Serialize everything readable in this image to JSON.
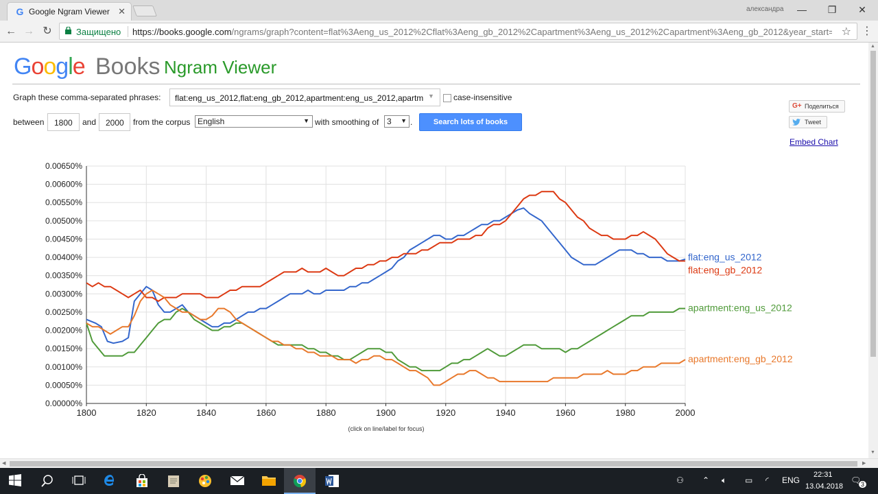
{
  "browser": {
    "tab_title": "Google Ngram Viewer",
    "tab_favicon": "G",
    "profile_name": "александра",
    "secure_label": "Защищено",
    "url_host": "https://books.google.com",
    "url_path": "/ngrams/graph?content=flat%3Aeng_us_2012%2Cflat%3Aeng_gb_2012%2Capartment%3Aeng_us_2012%2Capartment%3Aeng_gb_2012&year_start=..."
  },
  "page": {
    "logo_google": [
      "G",
      "o",
      "o",
      "g",
      "l",
      "e"
    ],
    "logo_books": "Books",
    "product_name": "Ngram Viewer",
    "phrases_label": "Graph these comma-separated phrases:",
    "phrases_value": "flat:eng_us_2012,flat:eng_gb_2012,apartment:eng_us_2012,apartm",
    "case_insensitive_label": "case-insensitive",
    "between_label": "between",
    "year_start": "1800",
    "and_label": "and",
    "year_end": "2000",
    "corpus_label": "from the corpus",
    "corpus_value": "English",
    "smoothing_label": "with smoothing of",
    "smoothing_value": "3",
    "dot": ".",
    "search_button": "Search lots of books",
    "share_label": "Поделиться",
    "share_icon": "G+",
    "tweet_label": "Tweet",
    "embed_link": "Embed Chart",
    "focus_hint": "(click on line/label for focus)"
  },
  "chart_data": {
    "type": "line",
    "xlim": [
      1800,
      2000
    ],
    "ylim": [
      0,
      0.0065
    ],
    "x_ticks": [
      1800,
      1820,
      1840,
      1860,
      1880,
      1900,
      1920,
      1940,
      1960,
      1980,
      2000
    ],
    "y_ticks": [
      "0.00000%",
      "0.00050%",
      "0.00100%",
      "0.00150%",
      "0.00200%",
      "0.00250%",
      "0.00300%",
      "0.00350%",
      "0.00400%",
      "0.00450%",
      "0.00500%",
      "0.00550%",
      "0.00600%",
      "0.00650%"
    ],
    "grid": true,
    "legend": "labels at line ends (right)",
    "series": [
      {
        "name": "flat:eng_us_2012",
        "color": "#3366cc",
        "x": [
          1800,
          1803,
          1805,
          1807,
          1809,
          1812,
          1814,
          1816,
          1818,
          1820,
          1822,
          1824,
          1826,
          1828,
          1830,
          1832,
          1834,
          1836,
          1838,
          1840,
          1842,
          1844,
          1846,
          1848,
          1850,
          1852,
          1854,
          1856,
          1858,
          1860,
          1862,
          1864,
          1866,
          1868,
          1870,
          1872,
          1874,
          1876,
          1878,
          1880,
          1882,
          1884,
          1886,
          1888,
          1890,
          1892,
          1894,
          1896,
          1898,
          1900,
          1902,
          1904,
          1906,
          1908,
          1910,
          1912,
          1914,
          1916,
          1918,
          1920,
          1922,
          1924,
          1926,
          1928,
          1930,
          1932,
          1934,
          1936,
          1938,
          1940,
          1942,
          1944,
          1946,
          1948,
          1950,
          1952,
          1954,
          1956,
          1958,
          1960,
          1962,
          1964,
          1966,
          1968,
          1970,
          1972,
          1974,
          1976,
          1978,
          1980,
          1982,
          1984,
          1986,
          1988,
          1990,
          1992,
          1994,
          1996,
          1998,
          2000
        ],
        "y": [
          0.0023,
          0.0022,
          0.0021,
          0.0017,
          0.00165,
          0.0017,
          0.0018,
          0.0028,
          0.003,
          0.0032,
          0.0031,
          0.0027,
          0.0025,
          0.0025,
          0.0026,
          0.0027,
          0.0025,
          0.0024,
          0.0023,
          0.0022,
          0.0021,
          0.0021,
          0.0022,
          0.0022,
          0.0023,
          0.0024,
          0.0025,
          0.0025,
          0.0026,
          0.0026,
          0.0027,
          0.0028,
          0.0029,
          0.003,
          0.003,
          0.003,
          0.0031,
          0.003,
          0.003,
          0.0031,
          0.0031,
          0.0031,
          0.0031,
          0.0032,
          0.0032,
          0.0033,
          0.0033,
          0.0034,
          0.0035,
          0.0036,
          0.0037,
          0.0039,
          0.004,
          0.0042,
          0.0043,
          0.0044,
          0.0045,
          0.0046,
          0.0046,
          0.0045,
          0.0045,
          0.0046,
          0.0046,
          0.0047,
          0.0048,
          0.0049,
          0.0049,
          0.005,
          0.005,
          0.0051,
          0.0052,
          0.0053,
          0.00535,
          0.0052,
          0.0051,
          0.005,
          0.0048,
          0.0046,
          0.0044,
          0.0042,
          0.004,
          0.0039,
          0.0038,
          0.0038,
          0.0038,
          0.0039,
          0.004,
          0.0041,
          0.0042,
          0.0042,
          0.0042,
          0.0041,
          0.0041,
          0.004,
          0.004,
          0.004,
          0.0039,
          0.0039,
          0.0039,
          0.00395
        ]
      },
      {
        "name": "flat:eng_gb_2012",
        "color": "#dc3912",
        "x": [
          1800,
          1802,
          1804,
          1806,
          1808,
          1810,
          1812,
          1814,
          1816,
          1818,
          1820,
          1822,
          1824,
          1826,
          1828,
          1830,
          1832,
          1834,
          1836,
          1838,
          1840,
          1842,
          1844,
          1846,
          1848,
          1850,
          1852,
          1854,
          1856,
          1858,
          1860,
          1862,
          1864,
          1866,
          1868,
          1870,
          1872,
          1874,
          1876,
          1878,
          1880,
          1882,
          1884,
          1886,
          1888,
          1890,
          1892,
          1894,
          1896,
          1898,
          1900,
          1902,
          1904,
          1906,
          1908,
          1910,
          1912,
          1914,
          1916,
          1918,
          1920,
          1922,
          1924,
          1926,
          1928,
          1930,
          1932,
          1934,
          1936,
          1938,
          1940,
          1942,
          1944,
          1946,
          1948,
          1950,
          1952,
          1954,
          1956,
          1958,
          1960,
          1962,
          1964,
          1966,
          1968,
          1970,
          1972,
          1974,
          1976,
          1978,
          1980,
          1982,
          1984,
          1986,
          1988,
          1990,
          1992,
          1994,
          1996,
          1998,
          2000
        ],
        "y": [
          0.0033,
          0.0032,
          0.0033,
          0.0032,
          0.0032,
          0.0031,
          0.003,
          0.0029,
          0.003,
          0.0031,
          0.0029,
          0.0029,
          0.0028,
          0.0029,
          0.0029,
          0.0029,
          0.003,
          0.003,
          0.003,
          0.003,
          0.0029,
          0.0029,
          0.0029,
          0.003,
          0.0031,
          0.0031,
          0.0032,
          0.0032,
          0.0032,
          0.0032,
          0.0033,
          0.0034,
          0.0035,
          0.0036,
          0.0036,
          0.0036,
          0.0037,
          0.0036,
          0.0036,
          0.0036,
          0.0037,
          0.0036,
          0.0035,
          0.0035,
          0.0036,
          0.0037,
          0.0037,
          0.0038,
          0.0038,
          0.0039,
          0.0039,
          0.004,
          0.004,
          0.0041,
          0.0041,
          0.0041,
          0.0042,
          0.0042,
          0.0043,
          0.0044,
          0.0044,
          0.0044,
          0.0045,
          0.0045,
          0.0045,
          0.0046,
          0.0046,
          0.0048,
          0.0049,
          0.0049,
          0.005,
          0.0052,
          0.0054,
          0.0056,
          0.0057,
          0.0057,
          0.0058,
          0.0058,
          0.0058,
          0.0056,
          0.0055,
          0.0053,
          0.0051,
          0.005,
          0.0048,
          0.0047,
          0.0046,
          0.0046,
          0.0045,
          0.0045,
          0.0045,
          0.0046,
          0.0046,
          0.0047,
          0.0046,
          0.0045,
          0.0043,
          0.0041,
          0.004,
          0.0039,
          0.0039
        ]
      },
      {
        "name": "apartment:eng_us_2012",
        "color": "#4f9a39",
        "x": [
          1800,
          1802,
          1804,
          1806,
          1808,
          1810,
          1812,
          1814,
          1816,
          1818,
          1820,
          1822,
          1824,
          1826,
          1828,
          1830,
          1832,
          1834,
          1836,
          1838,
          1840,
          1842,
          1844,
          1846,
          1848,
          1850,
          1852,
          1854,
          1856,
          1858,
          1860,
          1862,
          1864,
          1866,
          1868,
          1870,
          1872,
          1874,
          1876,
          1878,
          1880,
          1882,
          1884,
          1886,
          1888,
          1890,
          1892,
          1894,
          1896,
          1898,
          1900,
          1902,
          1904,
          1906,
          1908,
          1910,
          1912,
          1914,
          1916,
          1918,
          1920,
          1922,
          1924,
          1926,
          1928,
          1930,
          1932,
          1934,
          1936,
          1938,
          1940,
          1942,
          1944,
          1946,
          1948,
          1950,
          1952,
          1954,
          1956,
          1958,
          1960,
          1962,
          1964,
          1966,
          1968,
          1970,
          1972,
          1974,
          1976,
          1978,
          1980,
          1982,
          1984,
          1986,
          1988,
          1990,
          1992,
          1994,
          1996,
          1998,
          2000
        ],
        "y": [
          0.0022,
          0.0017,
          0.0015,
          0.0013,
          0.0013,
          0.0013,
          0.0013,
          0.0014,
          0.0014,
          0.0016,
          0.0018,
          0.002,
          0.0022,
          0.0023,
          0.0023,
          0.0025,
          0.0026,
          0.0025,
          0.0023,
          0.0022,
          0.0021,
          0.002,
          0.002,
          0.0021,
          0.0021,
          0.0022,
          0.0022,
          0.0021,
          0.002,
          0.0019,
          0.0018,
          0.0017,
          0.0016,
          0.0016,
          0.0016,
          0.0016,
          0.0016,
          0.0015,
          0.0015,
          0.0014,
          0.0014,
          0.0013,
          0.0013,
          0.0012,
          0.0012,
          0.0013,
          0.0014,
          0.0015,
          0.0015,
          0.0015,
          0.0014,
          0.0014,
          0.0012,
          0.0011,
          0.001,
          0.001,
          0.0009,
          0.0009,
          0.0009,
          0.0009,
          0.001,
          0.0011,
          0.0011,
          0.0012,
          0.0012,
          0.0013,
          0.0014,
          0.0015,
          0.0014,
          0.0013,
          0.0013,
          0.0014,
          0.0015,
          0.0016,
          0.0016,
          0.0016,
          0.0015,
          0.0015,
          0.0015,
          0.0015,
          0.0014,
          0.0015,
          0.0015,
          0.0016,
          0.0017,
          0.0018,
          0.0019,
          0.002,
          0.0021,
          0.0022,
          0.0023,
          0.0024,
          0.0024,
          0.0024,
          0.0025,
          0.0025,
          0.0025,
          0.0025,
          0.0025,
          0.0026,
          0.0026
        ]
      },
      {
        "name": "apartment:eng_gb_2012",
        "color": "#e8782b",
        "x": [
          1800,
          1802,
          1804,
          1806,
          1808,
          1810,
          1812,
          1814,
          1816,
          1818,
          1820,
          1822,
          1824,
          1826,
          1828,
          1830,
          1832,
          1834,
          1836,
          1838,
          1840,
          1842,
          1844,
          1846,
          1848,
          1850,
          1852,
          1854,
          1856,
          1858,
          1860,
          1862,
          1864,
          1866,
          1868,
          1870,
          1872,
          1874,
          1876,
          1878,
          1880,
          1882,
          1884,
          1886,
          1888,
          1890,
          1892,
          1894,
          1896,
          1898,
          1900,
          1902,
          1904,
          1906,
          1908,
          1910,
          1912,
          1914,
          1916,
          1918,
          1920,
          1922,
          1924,
          1926,
          1928,
          1930,
          1932,
          1934,
          1936,
          1938,
          1940,
          1942,
          1944,
          1946,
          1948,
          1950,
          1952,
          1954,
          1956,
          1958,
          1960,
          1962,
          1964,
          1966,
          1968,
          1970,
          1972,
          1974,
          1976,
          1978,
          1980,
          1982,
          1984,
          1986,
          1988,
          1990,
          1992,
          1994,
          1996,
          1998,
          2000
        ],
        "y": [
          0.0022,
          0.0021,
          0.0021,
          0.002,
          0.0019,
          0.002,
          0.0021,
          0.0021,
          0.0024,
          0.0028,
          0.003,
          0.0031,
          0.003,
          0.0029,
          0.0027,
          0.0026,
          0.0025,
          0.0025,
          0.0024,
          0.0023,
          0.0023,
          0.0024,
          0.0026,
          0.0026,
          0.0025,
          0.0023,
          0.0022,
          0.0021,
          0.002,
          0.0019,
          0.0018,
          0.0017,
          0.0017,
          0.0016,
          0.0016,
          0.0015,
          0.0015,
          0.0014,
          0.0014,
          0.0013,
          0.0013,
          0.0013,
          0.0012,
          0.0012,
          0.0012,
          0.0011,
          0.0012,
          0.0012,
          0.0013,
          0.0013,
          0.0012,
          0.0012,
          0.0011,
          0.001,
          0.0009,
          0.0009,
          0.0008,
          0.0007,
          0.0005,
          0.0005,
          0.0006,
          0.0007,
          0.0008,
          0.0008,
          0.0009,
          0.0009,
          0.0008,
          0.0007,
          0.0007,
          0.0006,
          0.0006,
          0.0006,
          0.0006,
          0.0006,
          0.0006,
          0.0006,
          0.0006,
          0.0006,
          0.0007,
          0.0007,
          0.0007,
          0.0007,
          0.0007,
          0.0008,
          0.0008,
          0.0008,
          0.0008,
          0.0009,
          0.0008,
          0.0008,
          0.0008,
          0.0009,
          0.0009,
          0.001,
          0.001,
          0.001,
          0.0011,
          0.0011,
          0.0011,
          0.0011,
          0.0012
        ]
      }
    ]
  },
  "taskbar": {
    "icons": [
      "windows-start-icon",
      "search-icon",
      "task-view-icon",
      "edge-icon",
      "store-icon",
      "notepad-icon",
      "paint-icon",
      "mail-icon",
      "explorer-icon",
      "chrome-icon",
      "word-icon"
    ],
    "language": "ENG",
    "time": "22:31",
    "date": "13.04.2018",
    "notifications": "3"
  }
}
